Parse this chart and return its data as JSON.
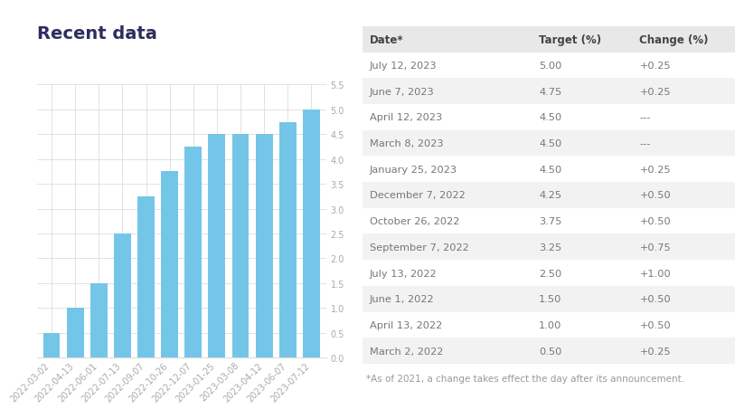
{
  "title": "Recent data",
  "title_color": "#2d2d5e",
  "title_fontsize": 14,
  "bar_dates": [
    "2022-03-02",
    "2022-04-13",
    "2022-06-01",
    "2022-07-13",
    "2022-09-07",
    "2022-10-26",
    "2022-12-07",
    "2023-01-25",
    "2023-03-08",
    "2023-04-12",
    "2023-06-07",
    "2023-07-12"
  ],
  "bar_values": [
    0.5,
    1.0,
    1.5,
    2.5,
    3.25,
    3.75,
    4.25,
    4.5,
    4.5,
    4.5,
    4.75,
    5.0
  ],
  "bar_color": "#74c6e8",
  "ylim": [
    0,
    5.5
  ],
  "yticks": [
    0.0,
    0.5,
    1.0,
    1.5,
    2.0,
    2.5,
    3.0,
    3.5,
    4.0,
    4.5,
    5.0,
    5.5
  ],
  "grid_color": "#dddddd",
  "background_color": "#ffffff",
  "table_headers": [
    "Date*",
    "Target (%)",
    "Change (%)"
  ],
  "table_rows": [
    [
      "July 12, 2023",
      "5.00",
      "+0.25"
    ],
    [
      "June 7, 2023",
      "4.75",
      "+0.25"
    ],
    [
      "April 12, 2023",
      "4.50",
      "---"
    ],
    [
      "March 8, 2023",
      "4.50",
      "---"
    ],
    [
      "January 25, 2023",
      "4.50",
      "+0.25"
    ],
    [
      "December 7, 2022",
      "4.25",
      "+0.50"
    ],
    [
      "October 26, 2022",
      "3.75",
      "+0.50"
    ],
    [
      "September 7, 2022",
      "3.25",
      "+0.75"
    ],
    [
      "July 13, 2022",
      "2.50",
      "+1.00"
    ],
    [
      "June 1, 2022",
      "1.50",
      "+0.50"
    ],
    [
      "April 13, 2022",
      "1.00",
      "+0.50"
    ],
    [
      "March 2, 2022",
      "0.50",
      "+0.25"
    ]
  ],
  "table_header_color": "#e8e8e8",
  "table_row_colors": [
    "#ffffff",
    "#f2f2f2"
  ],
  "table_text_color": "#777777",
  "table_header_text_color": "#444444",
  "footnote": "*As of 2021, a change takes effect the day after its announcement.",
  "footnote_color": "#999999",
  "footnote_fontsize": 7.5,
  "tick_color": "#aaaaaa",
  "tick_fontsize": 7
}
